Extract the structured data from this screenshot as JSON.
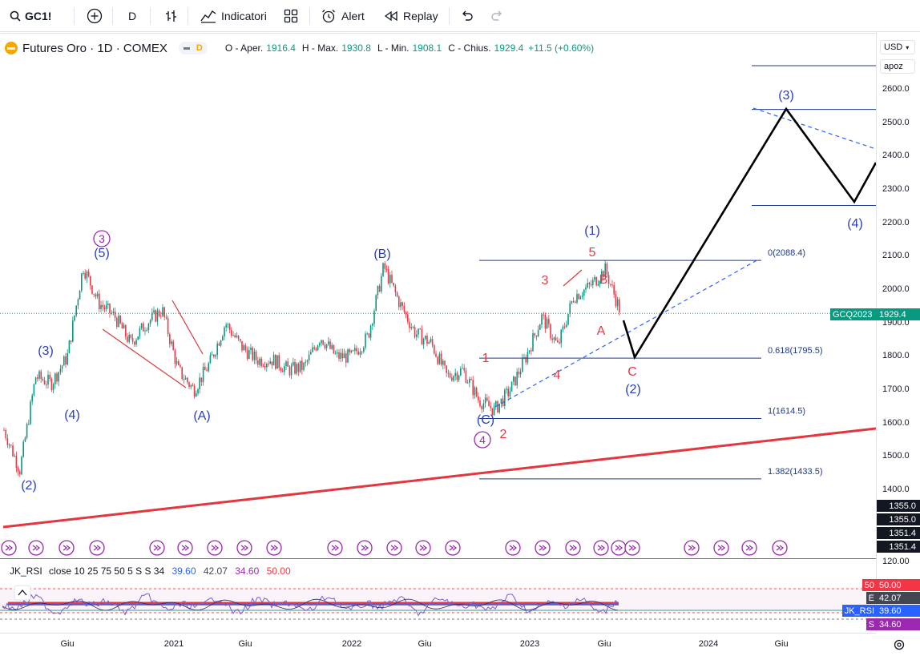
{
  "toolbar": {
    "symbol": "GC1!",
    "interval": "D",
    "indicators_label": "Indicatori",
    "alert_label": "Alert",
    "replay_label": "Replay"
  },
  "legend": {
    "title": "Futures Oro · 1D · COMEX",
    "badge": "D",
    "open_label": "O - Aper.",
    "open": "1916.4",
    "high_label": "H - Max.",
    "high": "1930.8",
    "low_label": "L - Min.",
    "low": "1908.1",
    "close_label": "C - Chius.",
    "close": "1929.4",
    "change": "+11.5 (+0.60%)"
  },
  "price_axis": {
    "currency": "USD",
    "scale_button": "apoz",
    "ticks": [
      "2600.0",
      "2500.0",
      "2400.0",
      "2300.0",
      "2200.0",
      "2100.0",
      "2000.0",
      "1900.0",
      "1800.0",
      "1700.0",
      "1600.0",
      "1500.0",
      "1400.0"
    ],
    "contract_tag": "GCQ2023",
    "last_price": "1929.4",
    "dark_tags": [
      "1355.0",
      "1355.0",
      "1351.4",
      "1351.4"
    ],
    "rsi_axis_label": "120.00"
  },
  "time_axis": {
    "labels": [
      "Giu",
      "2021",
      "Giu",
      "2022",
      "Giu",
      "2023",
      "Giu",
      "2024",
      "Giu"
    ]
  },
  "rsi": {
    "name": "JK_RSI",
    "params": "close 10 25 75 50 5 S S 34",
    "v1": "39.60",
    "v2": "42.07",
    "v3": "34.60",
    "v4": "50.00",
    "tags": [
      {
        "label": "50",
        "value": "50.00",
        "color": "#f23645"
      },
      {
        "label": "E",
        "value": "42.07",
        "color": "#434651"
      },
      {
        "label": "JK_RSI",
        "value": "39.60",
        "color": "#2962ff"
      },
      {
        "label": "S",
        "value": "34.60",
        "color": "#9c27b0"
      }
    ]
  },
  "annotations": {
    "fib_0": "0(2088.4)",
    "fib_0618": "0.618(1795.5)",
    "fib_1": "1(1614.5)",
    "fib_1382": "1.382(1433.5)"
  },
  "colors": {
    "candle_up": "#089981",
    "candle_down": "#f23645",
    "wave_blue": "#2a3dbf",
    "wave_red": "#e63946",
    "wave_purple": "#9c27b0",
    "fib_line": "#1e3a8a",
    "trend_red": "#e0383e"
  },
  "chart_data": {
    "type": "line",
    "title": "Futures Oro · 1D · COMEX",
    "ylim": [
      1350,
      2700
    ],
    "x_ticks": [
      "Giu",
      "2021",
      "Giu",
      "2022",
      "Giu",
      "2023",
      "Giu",
      "2024",
      "Giu"
    ],
    "series": [
      {
        "name": "GC1!",
        "x": [
          "2020-03",
          "2020-04",
          "2020-05",
          "2020-06",
          "2020-07",
          "2020-08",
          "2020-09",
          "2020-10",
          "2020-11",
          "2020-12",
          "2021-01",
          "2021-02",
          "2021-03",
          "2021-04",
          "2021-05",
          "2021-06",
          "2021-07",
          "2021-08",
          "2021-09",
          "2021-10",
          "2021-11",
          "2021-12",
          "2022-01",
          "2022-02",
          "2022-03",
          "2022-04",
          "2022-05",
          "2022-06",
          "2022-07",
          "2022-08",
          "2022-09",
          "2022-10",
          "2022-11",
          "2022-12",
          "2023-01",
          "2023-02",
          "2023-03",
          "2023-04",
          "2023-05",
          "2023-06"
        ],
        "values": [
          1580,
          1460,
          1740,
          1720,
          1800,
          2070,
          1960,
          1920,
          1840,
          1900,
          1940,
          1760,
          1700,
          1780,
          1900,
          1830,
          1790,
          1790,
          1760,
          1770,
          1860,
          1800,
          1800,
          1860,
          2070,
          1960,
          1870,
          1840,
          1740,
          1760,
          1670,
          1640,
          1700,
          1800,
          1920,
          1830,
          1980,
          2010,
          2060,
          1929
        ]
      }
    ]
  }
}
